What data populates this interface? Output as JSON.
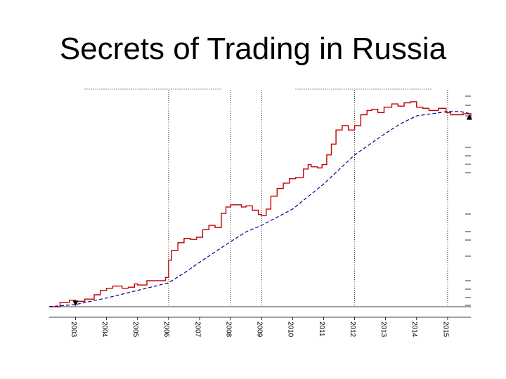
{
  "slide": {
    "title": "Secrets of Trading in Russia"
  },
  "chart_data": {
    "type": "line",
    "title": "",
    "xlabel": "",
    "ylabel": "",
    "x_ticks": [
      "2003",
      "2004",
      "2005",
      "2006",
      "2007",
      "2008",
      "2009",
      "2010",
      "2011",
      "2012",
      "2013",
      "2014",
      "2015"
    ],
    "xlim": [
      2002.15,
      2015.75
    ],
    "ylim": [
      0,
      100
    ],
    "grid": false,
    "reference_years": [
      2006.0,
      2008.0,
      2009.0,
      2012.0,
      2015.0
    ],
    "markers": [
      {
        "name": "entry",
        "shape": "triangle-down",
        "x": 2003.0,
        "y": 1.5
      },
      {
        "name": "exit",
        "shape": "triangle-up",
        "x": 2015.7,
        "y": 87.5
      }
    ],
    "series": [
      {
        "color": "#c00000",
        "style": "step",
        "points": [
          [
            2002.15,
            0.0
          ],
          [
            2002.5,
            2.0
          ],
          [
            2002.8,
            3.0
          ],
          [
            2003.0,
            2.5
          ],
          [
            2003.3,
            3.5
          ],
          [
            2003.6,
            5.5
          ],
          [
            2003.8,
            7.5
          ],
          [
            2004.0,
            8.5
          ],
          [
            2004.2,
            9.5
          ],
          [
            2004.5,
            8.5
          ],
          [
            2004.7,
            9.0
          ],
          [
            2004.9,
            10.5
          ],
          [
            2005.0,
            10.0
          ],
          [
            2005.3,
            12.0
          ],
          [
            2005.6,
            12.0
          ],
          [
            2005.9,
            13.5
          ],
          [
            2006.0,
            21.5
          ],
          [
            2006.1,
            26.0
          ],
          [
            2006.3,
            29.5
          ],
          [
            2006.5,
            31.5
          ],
          [
            2006.7,
            31.0
          ],
          [
            2006.9,
            32.0
          ],
          [
            2007.1,
            35.5
          ],
          [
            2007.3,
            37.5
          ],
          [
            2007.5,
            36.5
          ],
          [
            2007.7,
            43.0
          ],
          [
            2007.85,
            46.0
          ],
          [
            2008.0,
            47.0
          ],
          [
            2008.15,
            47.0
          ],
          [
            2008.35,
            46.0
          ],
          [
            2008.5,
            46.5
          ],
          [
            2008.7,
            44.5
          ],
          [
            2008.9,
            42.5
          ],
          [
            2009.0,
            42.0
          ],
          [
            2009.15,
            45.0
          ],
          [
            2009.3,
            51.0
          ],
          [
            2009.5,
            54.5
          ],
          [
            2009.7,
            57.0
          ],
          [
            2009.9,
            59.0
          ],
          [
            2010.1,
            59.5
          ],
          [
            2010.35,
            63.5
          ],
          [
            2010.5,
            65.5
          ],
          [
            2010.6,
            64.5
          ],
          [
            2010.8,
            64.0
          ],
          [
            2010.95,
            65.5
          ],
          [
            2011.1,
            70.0
          ],
          [
            2011.25,
            75.0
          ],
          [
            2011.4,
            81.5
          ],
          [
            2011.6,
            83.5
          ],
          [
            2011.8,
            81.5
          ],
          [
            2012.0,
            83.5
          ],
          [
            2012.2,
            88.5
          ],
          [
            2012.4,
            90.5
          ],
          [
            2012.55,
            91.0
          ],
          [
            2012.75,
            89.5
          ],
          [
            2012.95,
            92.0
          ],
          [
            2013.2,
            93.5
          ],
          [
            2013.4,
            92.5
          ],
          [
            2013.6,
            94.0
          ],
          [
            2013.8,
            94.5
          ],
          [
            2014.0,
            92.0
          ],
          [
            2014.2,
            91.5
          ],
          [
            2014.4,
            90.5
          ],
          [
            2014.7,
            91.5
          ],
          [
            2014.95,
            89.5
          ],
          [
            2015.1,
            88.5
          ],
          [
            2015.3,
            88.5
          ],
          [
            2015.5,
            89.0
          ],
          [
            2015.75,
            86.5
          ]
        ]
      },
      {
        "color": "#00008b",
        "style": "dashed",
        "points": [
          [
            2002.15,
            0.0
          ],
          [
            2003.0,
            1.0
          ],
          [
            2004.0,
            4.0
          ],
          [
            2005.0,
            7.5
          ],
          [
            2006.0,
            11.0
          ],
          [
            2006.5,
            15.5
          ],
          [
            2007.0,
            20.5
          ],
          [
            2008.0,
            30.0
          ],
          [
            2008.5,
            34.5
          ],
          [
            2009.0,
            37.5
          ],
          [
            2010.0,
            45.0
          ],
          [
            2011.0,
            56.5
          ],
          [
            2012.0,
            70.0
          ],
          [
            2013.0,
            80.0
          ],
          [
            2013.5,
            84.5
          ],
          [
            2014.0,
            88.0
          ],
          [
            2014.5,
            89.0
          ],
          [
            2015.0,
            90.0
          ],
          [
            2015.4,
            90.0
          ],
          [
            2015.75,
            89.0
          ]
        ]
      }
    ]
  }
}
